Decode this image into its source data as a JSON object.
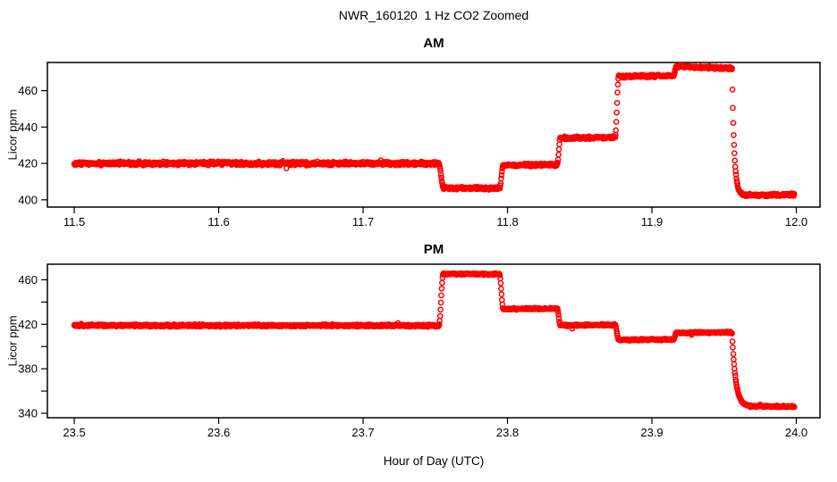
{
  "page": {
    "title_main": "NWR_160120  1 Hz CO2 Zoomed",
    "xlabel": "Hour of Day (UTC)"
  },
  "chart_data": [
    {
      "type": "scatter",
      "title": "AM",
      "ylabel": "Licor ppm",
      "marker": "open-circle",
      "color": "#FF0000",
      "sample_rate_hz": 1,
      "grid": false,
      "xlim": [
        11.4814,
        12.0164
      ],
      "ylim": [
        396.0,
        475.5
      ],
      "x_tick_labels": [
        "11.5",
        "11.6",
        "11.7",
        "11.8",
        "11.9",
        "12.0"
      ],
      "x_tick_values": [
        11.5,
        11.6,
        11.7,
        11.8,
        11.9,
        12.0
      ],
      "y_tick_labels": [
        "400",
        "420",
        "440",
        "460"
      ],
      "y_tick_values": [
        400,
        420,
        440,
        460
      ],
      "y_minor_tick_values": [],
      "segments": [
        {
          "t0": 11.5,
          "t1": 11.7525,
          "v0": 420.0,
          "v1": 420.0,
          "shape": "flat",
          "noise": 0.45
        },
        {
          "t0": 11.7555,
          "t1": 11.7945,
          "v0": 406.5,
          "v1": 406.3,
          "shape": "flat",
          "noise": 0.35
        },
        {
          "t0": 11.797,
          "t1": 11.8345,
          "v0": 419.0,
          "v1": 419.4,
          "shape": "flat",
          "noise": 0.35
        },
        {
          "t0": 11.8365,
          "t1": 11.8745,
          "v0": 434.0,
          "v1": 434.3,
          "shape": "flat",
          "noise": 0.35
        },
        {
          "t0": 11.877,
          "t1": 11.915,
          "v0": 467.8,
          "v1": 468.2,
          "shape": "flat",
          "noise": 0.35
        },
        {
          "t0": 11.917,
          "t1": 11.9545,
          "v0": 473.4,
          "v1": 472.3,
          "shape": "flat",
          "noise": 0.35
        },
        {
          "t0": 11.9555,
          "t1": 11.963,
          "v0": 472.0,
          "v1": 402.5,
          "shape": "exp",
          "noise": 0.3
        },
        {
          "t0": 11.963,
          "t1": 11.9985,
          "v0": 402.5,
          "v1": 402.8,
          "shape": "flat",
          "noise": 0.35
        }
      ]
    },
    {
      "type": "scatter",
      "title": "PM",
      "ylabel": "Licor ppm",
      "marker": "open-circle",
      "color": "#FF0000",
      "sample_rate_hz": 1,
      "grid": false,
      "xlim": [
        23.4814,
        24.0164
      ],
      "ylim": [
        336.0,
        474.0
      ],
      "x_tick_labels": [
        "23.5",
        "23.6",
        "23.7",
        "23.8",
        "23.9",
        "24.0"
      ],
      "x_tick_values": [
        23.5,
        23.6,
        23.7,
        23.8,
        23.9,
        24.0
      ],
      "y_tick_labels": [
        "340",
        "380",
        "420",
        "460"
      ],
      "y_tick_values": [
        340,
        380,
        420,
        460
      ],
      "y_minor_tick_values": [
        360,
        400,
        440
      ],
      "segments": [
        {
          "t0": 23.5,
          "t1": 23.7525,
          "v0": 419.0,
          "v1": 418.8,
          "shape": "flat",
          "noise": 0.45
        },
        {
          "t0": 23.7555,
          "t1": 23.7945,
          "v0": 465.4,
          "v1": 465.0,
          "shape": "flat",
          "noise": 0.35
        },
        {
          "t0": 23.797,
          "t1": 23.8345,
          "v0": 433.8,
          "v1": 434.2,
          "shape": "flat",
          "noise": 0.35
        },
        {
          "t0": 23.8365,
          "t1": 23.8745,
          "v0": 419.0,
          "v1": 419.5,
          "shape": "flat",
          "noise": 0.35
        },
        {
          "t0": 23.877,
          "t1": 23.915,
          "v0": 406.0,
          "v1": 406.3,
          "shape": "flat",
          "noise": 0.35
        },
        {
          "t0": 23.917,
          "t1": 23.9545,
          "v0": 412.3,
          "v1": 412.7,
          "shape": "flat",
          "noise": 0.35
        },
        {
          "t0": 23.9555,
          "t1": 23.968,
          "v0": 412.0,
          "v1": 346.3,
          "shape": "exp",
          "noise": 0.3
        },
        {
          "t0": 23.968,
          "t1": 23.9985,
          "v0": 346.3,
          "v1": 346.0,
          "shape": "flat",
          "noise": 0.35
        }
      ]
    }
  ]
}
